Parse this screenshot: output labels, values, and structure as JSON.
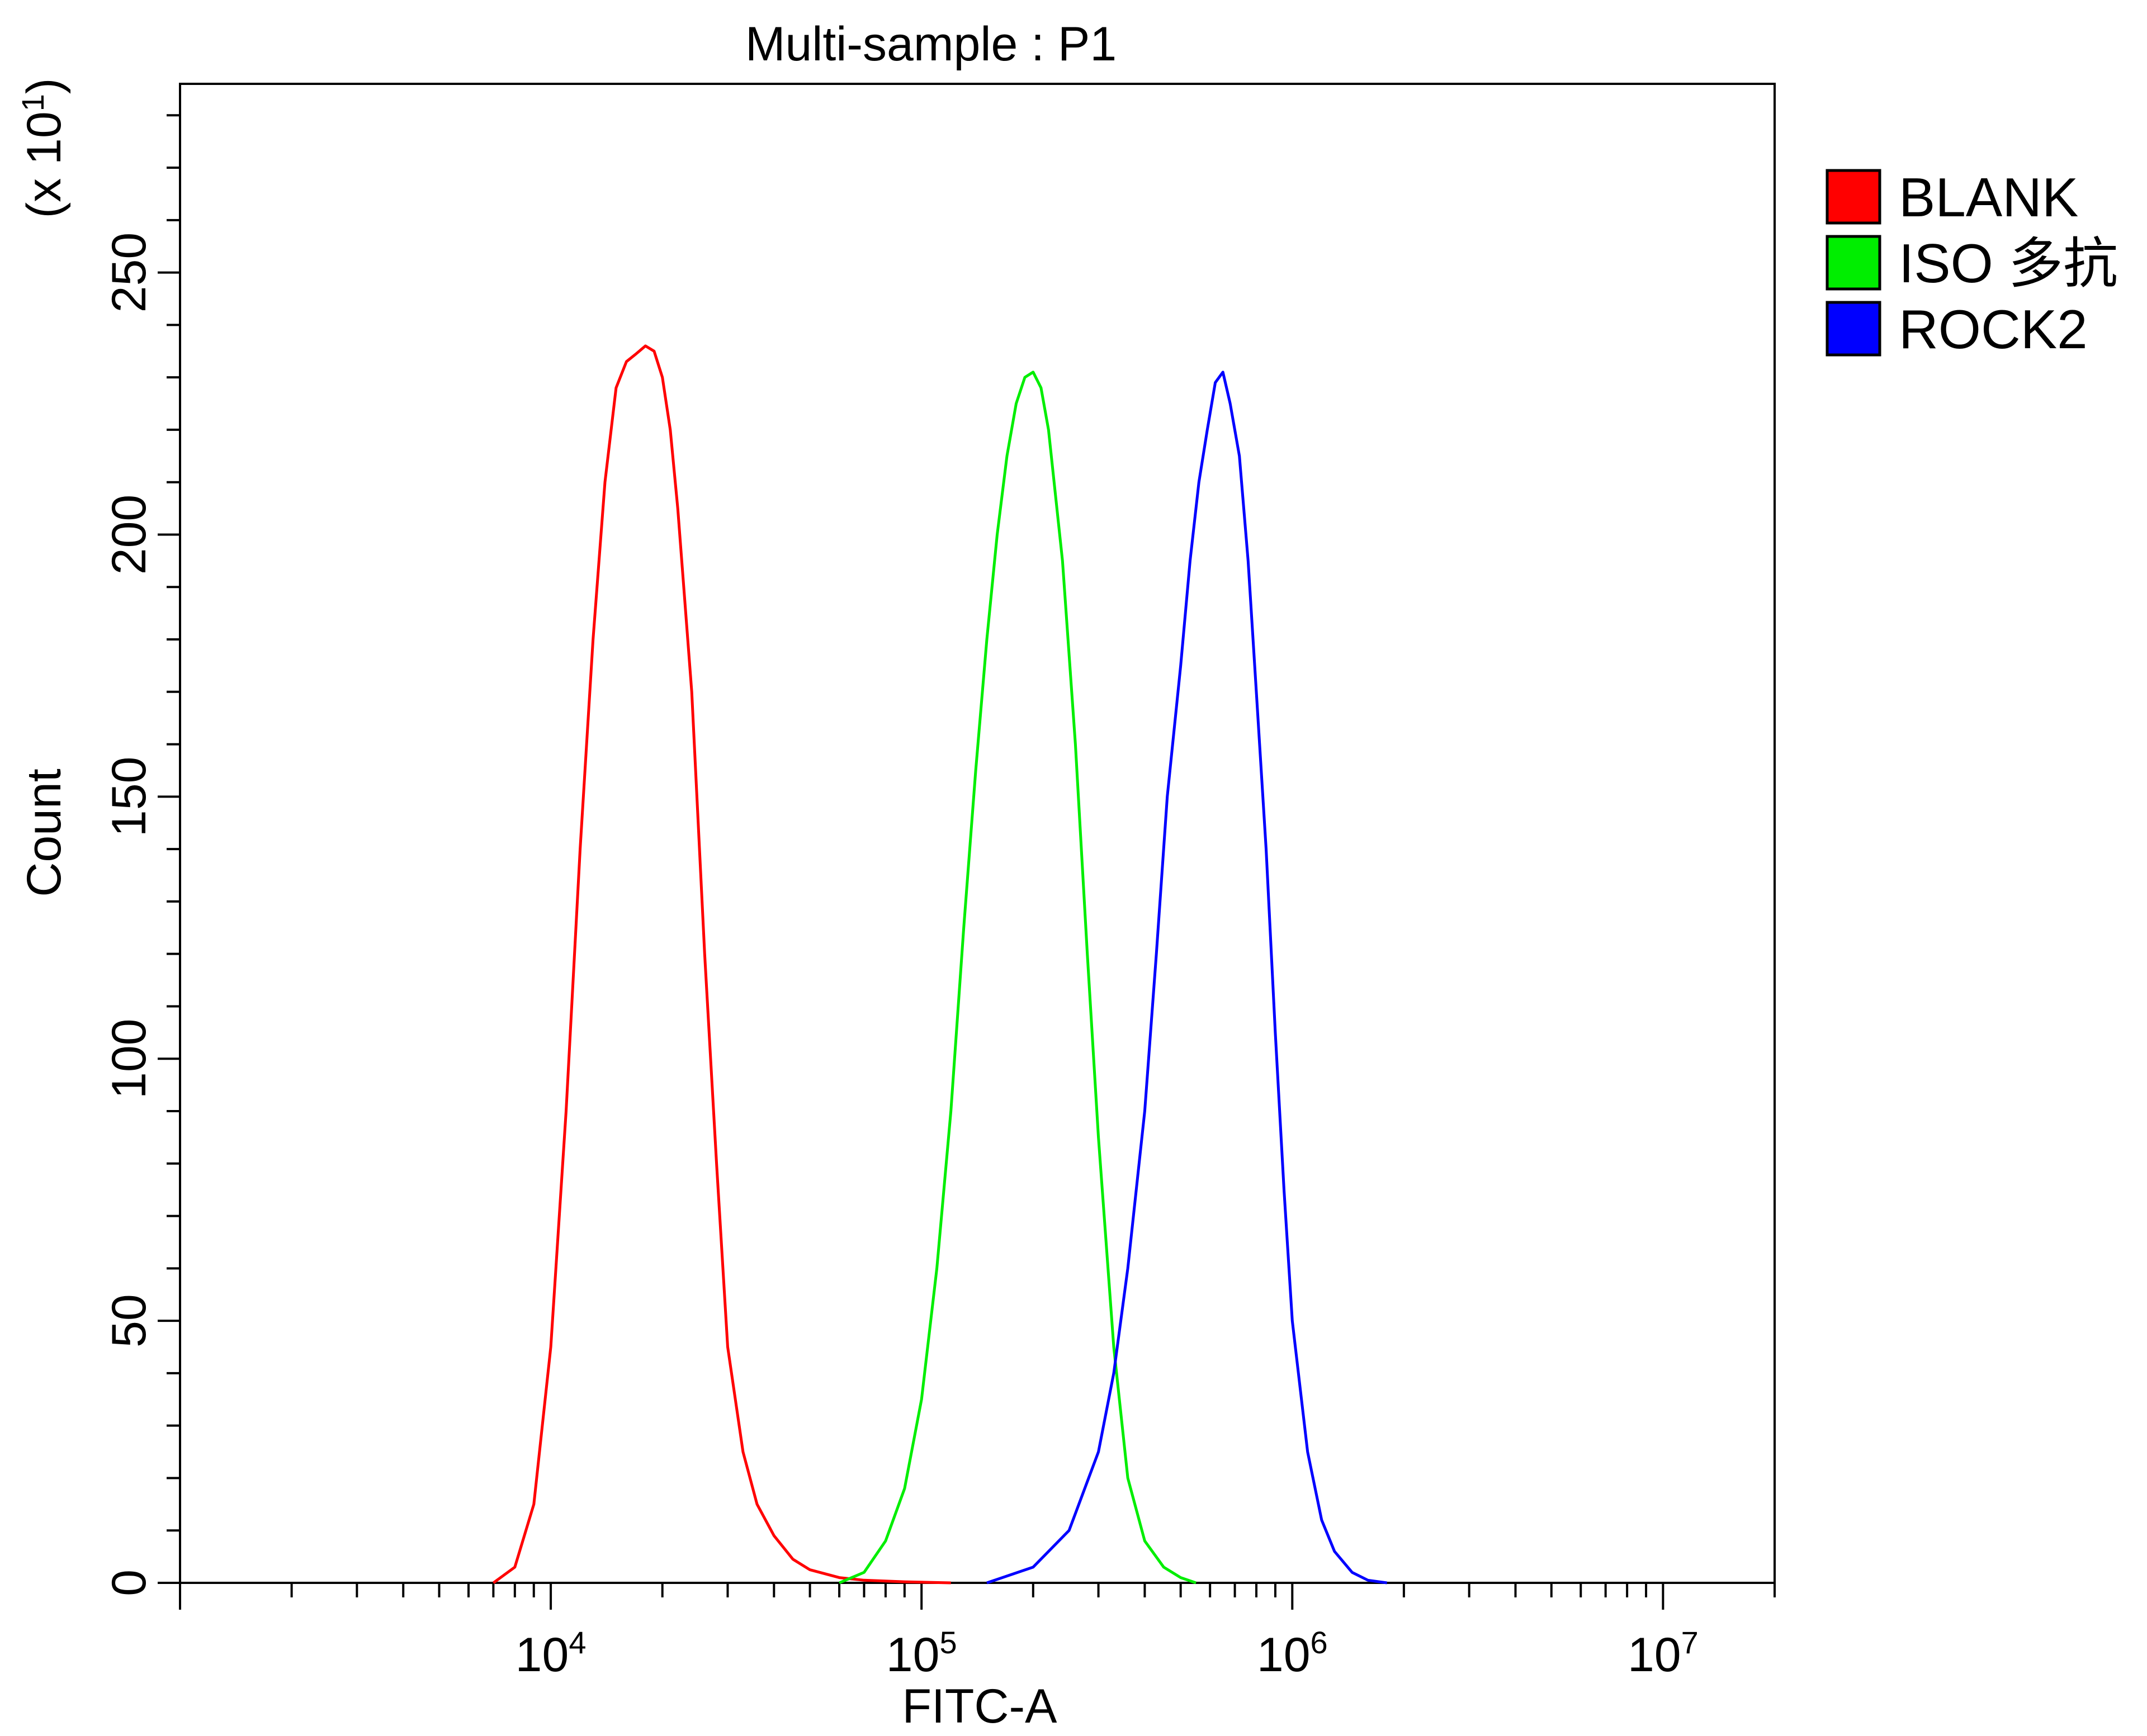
{
  "chart_data": {
    "type": "line",
    "title": "Multi-sample : P1",
    "xlabel": "FITC-A",
    "ylabel": "Count",
    "y_multiplier_label": "(x 10",
    "y_multiplier_exp": "1",
    "y_multiplier_close": ")",
    "x_scale": "log",
    "xlim": [
      1000,
      20000000
    ],
    "ylim": [
      0,
      2860
    ],
    "y_ticks": [
      {
        "value": 0,
        "label": "0"
      },
      {
        "value": 500,
        "label": "50"
      },
      {
        "value": 1000,
        "label": "100"
      },
      {
        "value": 1500,
        "label": "150"
      },
      {
        "value": 2000,
        "label": "200"
      },
      {
        "value": 2500,
        "label": "250"
      }
    ],
    "x_ticks": [
      {
        "value": 10000,
        "base": "10",
        "exp": "4"
      },
      {
        "value": 100000,
        "base": "10",
        "exp": "5"
      },
      {
        "value": 1000000,
        "base": "10",
        "exp": "6"
      },
      {
        "value": 10000000,
        "base": "10",
        "exp": "7"
      }
    ],
    "grid": false,
    "legend_position": "right",
    "series": [
      {
        "name": "BLANK",
        "color": "#ff0000",
        "x": [
          7000,
          8000,
          9000,
          10000,
          11000,
          12000,
          13000,
          14000,
          15000,
          16000,
          17000,
          18000,
          19000,
          20000,
          21000,
          22000,
          24000,
          26000,
          28000,
          30000,
          33000,
          36000,
          40000,
          45000,
          50000,
          60000,
          70000,
          90000,
          120000
        ],
        "y": [
          0,
          30,
          150,
          450,
          900,
          1400,
          1800,
          2100,
          2280,
          2330,
          2345,
          2360,
          2350,
          2300,
          2200,
          2050,
          1700,
          1200,
          800,
          450,
          250,
          150,
          90,
          45,
          25,
          10,
          5,
          2,
          0
        ]
      },
      {
        "name": "ISO 多抗",
        "color": "#00ee00",
        "x": [
          60000,
          70000,
          80000,
          90000,
          100000,
          110000,
          120000,
          130000,
          140000,
          150000,
          160000,
          170000,
          180000,
          190000,
          200000,
          210000,
          220000,
          240000,
          260000,
          280000,
          300000,
          330000,
          360000,
          400000,
          450000,
          500000,
          550000
        ],
        "y": [
          0,
          20,
          80,
          180,
          350,
          600,
          900,
          1250,
          1550,
          1800,
          2000,
          2150,
          2250,
          2300,
          2310,
          2280,
          2200,
          1950,
          1600,
          1200,
          850,
          450,
          200,
          80,
          30,
          10,
          0
        ]
      },
      {
        "name": "ROCK2",
        "color": "#0000ff",
        "x": [
          150000,
          200000,
          250000,
          300000,
          330000,
          360000,
          400000,
          430000,
          460000,
          500000,
          530000,
          560000,
          590000,
          620000,
          650000,
          680000,
          720000,
          760000,
          800000,
          850000,
          900000,
          950000,
          1000000,
          1100000,
          1200000,
          1300000,
          1450000,
          1600000,
          1800000
        ],
        "y": [
          0,
          30,
          100,
          250,
          400,
          600,
          900,
          1200,
          1500,
          1750,
          1950,
          2100,
          2200,
          2290,
          2310,
          2250,
          2150,
          1950,
          1700,
          1400,
          1050,
          750,
          500,
          250,
          120,
          60,
          20,
          5,
          0
        ]
      }
    ]
  }
}
